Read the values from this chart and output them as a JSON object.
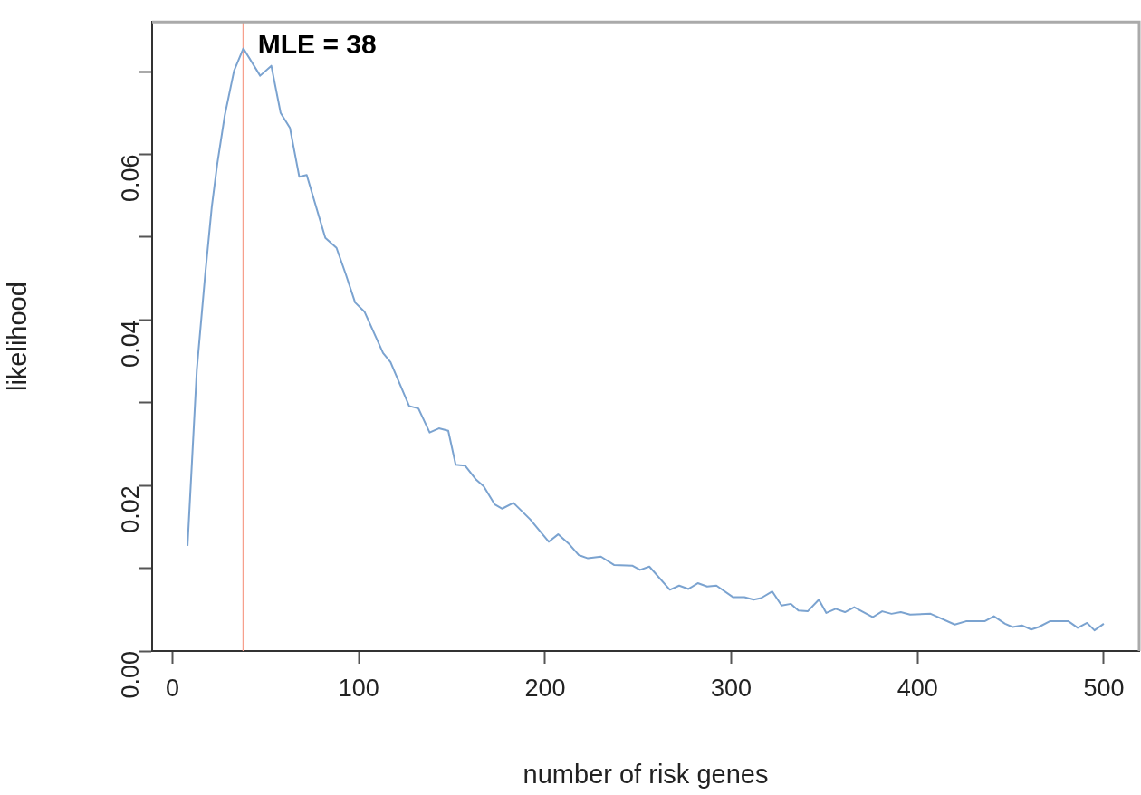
{
  "chart_data": {
    "type": "line",
    "xlabel": "number of risk genes",
    "ylabel": "likelihood",
    "xlim": [
      -11,
      519
    ],
    "ylim": [
      0,
      0.076
    ],
    "xticks": [
      0,
      100,
      200,
      300,
      400,
      500
    ],
    "yticks": [
      {
        "value": 0,
        "label": "0.00"
      },
      {
        "value": 0.01,
        "label": null
      },
      {
        "value": 0.02,
        "label": "0.02"
      },
      {
        "value": 0.03,
        "label": null
      },
      {
        "value": 0.04,
        "label": "0.04"
      },
      {
        "value": 0.05,
        "label": null
      },
      {
        "value": 0.06,
        "label": "0.06"
      },
      {
        "value": 0.07,
        "label": null
      }
    ],
    "grid": false,
    "legend": false,
    "marker": "none",
    "line_style": "solid",
    "series": [
      {
        "color": "#7ba3d0",
        "x": [
          8,
          13,
          17.5,
          21,
          24,
          28,
          33,
          38,
          47,
          53,
          58,
          63,
          68,
          72,
          82,
          88,
          93,
          98,
          103,
          113,
          117,
          127,
          132,
          138,
          143,
          148,
          152,
          157,
          163,
          167,
          173,
          177,
          183,
          192,
          202,
          207,
          213,
          218,
          223,
          230,
          237,
          247,
          251,
          256,
          267,
          272,
          277,
          282,
          287,
          292,
          301,
          307,
          312,
          316,
          322,
          327,
          332,
          336,
          341,
          347,
          351,
          356,
          361,
          366,
          376,
          381,
          386,
          391,
          396,
          407,
          420,
          426,
          436,
          441,
          447,
          451,
          456,
          461,
          465,
          471,
          481,
          486,
          491,
          495,
          500
        ],
        "values": [
          0.0127,
          0.034,
          0.0455,
          0.0536,
          0.0589,
          0.0647,
          0.0701,
          0.0728,
          0.0695,
          0.0707,
          0.065,
          0.0632,
          0.0573,
          0.0575,
          0.0499,
          0.0487,
          0.0455,
          0.0421,
          0.041,
          0.036,
          0.0349,
          0.0296,
          0.0293,
          0.0264,
          0.0269,
          0.0266,
          0.0225,
          0.0224,
          0.0207,
          0.0199,
          0.0177,
          0.0172,
          0.0179,
          0.0159,
          0.0132,
          0.0141,
          0.0129,
          0.0116,
          0.0112,
          0.0114,
          0.0104,
          0.0103,
          0.0098,
          0.0102,
          0.0074,
          0.0079,
          0.0075,
          0.0082,
          0.0078,
          0.0079,
          0.0065,
          0.0065,
          0.0062,
          0.0064,
          0.0072,
          0.0055,
          0.0057,
          0.0049,
          0.0048,
          0.0062,
          0.0046,
          0.0051,
          0.0047,
          0.0053,
          0.0041,
          0.0048,
          0.0045,
          0.0047,
          0.0044,
          0.0045,
          0.0032,
          0.0036,
          0.0036,
          0.0042,
          0.0033,
          0.0029,
          0.0031,
          0.0026,
          0.0029,
          0.0036,
          0.0036,
          0.0028,
          0.0034,
          0.0025,
          0.0033
        ]
      }
    ],
    "ref_lines": [
      {
        "axis": "x",
        "value": 38,
        "label": "MLE = 38",
        "color": "#f7a08c"
      }
    ]
  }
}
